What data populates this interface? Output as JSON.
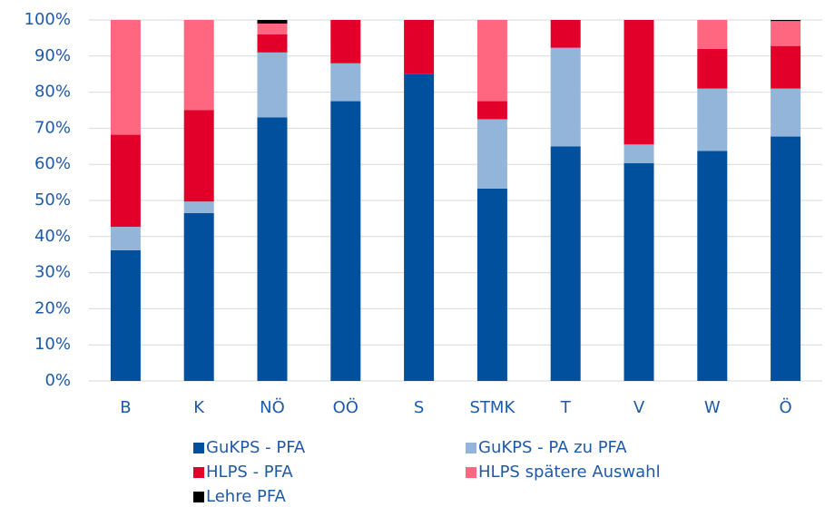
{
  "chart_data": {
    "type": "stacked_bar",
    "categories": [
      "B",
      "K",
      "NÖ",
      "OÖ",
      "S",
      "STMK",
      "T",
      "V",
      "W",
      "Ö"
    ],
    "series": [
      {
        "name": "GuKPS - PFA",
        "color": "#00509e",
        "values": [
          36.2,
          46.5,
          73,
          77.5,
          85,
          53.3,
          65,
          60.3,
          63.7,
          67.7
        ]
      },
      {
        "name": "GuKPS - PA zu PFA",
        "color": "#94b5da",
        "values": [
          6.5,
          3.2,
          18,
          10.5,
          0,
          19.2,
          27.3,
          5.2,
          17.3,
          13.3
        ]
      },
      {
        "name": "HLPS - PFA",
        "color": "#e2002a",
        "values": [
          25.5,
          25.3,
          5,
          12,
          15,
          5,
          7.7,
          34.5,
          11,
          11.8
        ]
      },
      {
        "name": "HLPS spätere Auswahl",
        "color": "#ff667f",
        "values": [
          31.8,
          25,
          3,
          0,
          0,
          22.5,
          0,
          0,
          8,
          6.9
        ]
      },
      {
        "name": "Lehre PFA",
        "color": "#000000",
        "values": [
          0,
          0,
          1,
          0,
          0,
          0,
          0,
          0,
          0,
          0.3
        ]
      }
    ],
    "ylim": [
      0,
      100
    ],
    "yticks": [
      {
        "value": 0,
        "label": "0%"
      },
      {
        "value": 10,
        "label": "10%"
      },
      {
        "value": 20,
        "label": "20%"
      },
      {
        "value": 30,
        "label": "30%"
      },
      {
        "value": 40,
        "label": "40%"
      },
      {
        "value": 50,
        "label": "50%"
      },
      {
        "value": 60,
        "label": "60%"
      },
      {
        "value": 70,
        "label": "70%"
      },
      {
        "value": 80,
        "label": "80%"
      },
      {
        "value": 90,
        "label": "90%"
      },
      {
        "value": 100,
        "label": "100%"
      }
    ],
    "grid": true
  }
}
